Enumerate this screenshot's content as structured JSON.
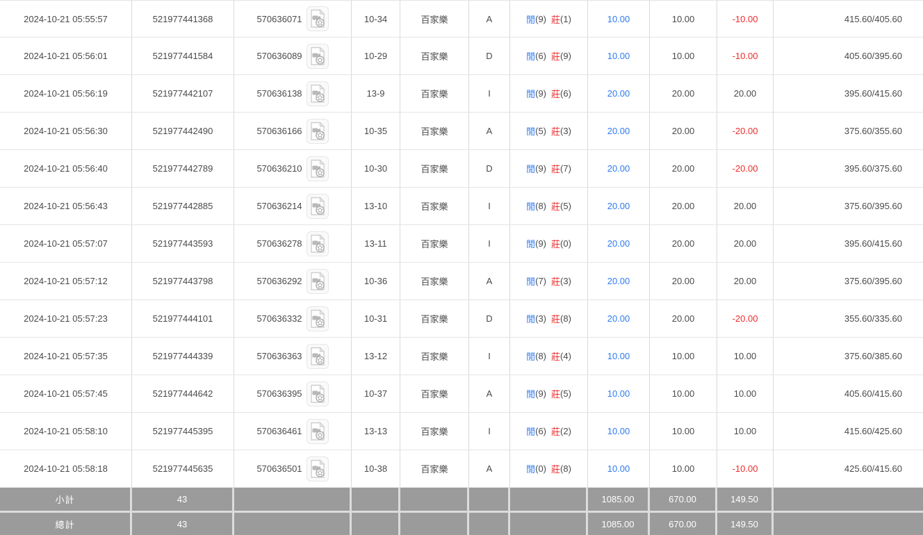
{
  "colors": {
    "accent_blue": "#2e7bf0",
    "accent_red": "#ee2c2c",
    "footer_bg": "#9b9b9b"
  },
  "labels": {
    "player": "閒",
    "banker": "莊",
    "game": "百家樂",
    "subtotal": "小計",
    "total": "總計"
  },
  "icons": {
    "video": "video-document-icon"
  },
  "table": {
    "rows": [
      {
        "time": "2024-10-21 05:55:57",
        "bet_id": "521977441368",
        "round_id": "570636071",
        "table_round": "10-34",
        "game": "百家樂",
        "bet_type": "A",
        "player": "9",
        "banker": "1",
        "bet": "10.00",
        "valid": "10.00",
        "payout": "-10.00",
        "balance": "415.60/405.60"
      },
      {
        "time": "2024-10-21 05:56:01",
        "bet_id": "521977441584",
        "round_id": "570636089",
        "table_round": "10-29",
        "game": "百家樂",
        "bet_type": "D",
        "player": "6",
        "banker": "9",
        "bet": "10.00",
        "valid": "10.00",
        "payout": "-10.00",
        "balance": "405.60/395.60"
      },
      {
        "time": "2024-10-21 05:56:19",
        "bet_id": "521977442107",
        "round_id": "570636138",
        "table_round": "13-9",
        "game": "百家樂",
        "bet_type": "I",
        "player": "9",
        "banker": "6",
        "bet": "20.00",
        "valid": "20.00",
        "payout": "20.00",
        "balance": "395.60/415.60"
      },
      {
        "time": "2024-10-21 05:56:30",
        "bet_id": "521977442490",
        "round_id": "570636166",
        "table_round": "10-35",
        "game": "百家樂",
        "bet_type": "A",
        "player": "5",
        "banker": "3",
        "bet": "20.00",
        "valid": "20.00",
        "payout": "-20.00",
        "balance": "375.60/355.60"
      },
      {
        "time": "2024-10-21 05:56:40",
        "bet_id": "521977442789",
        "round_id": "570636210",
        "table_round": "10-30",
        "game": "百家樂",
        "bet_type": "D",
        "player": "9",
        "banker": "7",
        "bet": "20.00",
        "valid": "20.00",
        "payout": "-20.00",
        "balance": "395.60/375.60"
      },
      {
        "time": "2024-10-21 05:56:43",
        "bet_id": "521977442885",
        "round_id": "570636214",
        "table_round": "13-10",
        "game": "百家樂",
        "bet_type": "I",
        "player": "8",
        "banker": "5",
        "bet": "20.00",
        "valid": "20.00",
        "payout": "20.00",
        "balance": "375.60/395.60"
      },
      {
        "time": "2024-10-21 05:57:07",
        "bet_id": "521977443593",
        "round_id": "570636278",
        "table_round": "13-11",
        "game": "百家樂",
        "bet_type": "I",
        "player": "9",
        "banker": "0",
        "bet": "20.00",
        "valid": "20.00",
        "payout": "20.00",
        "balance": "395.60/415.60"
      },
      {
        "time": "2024-10-21 05:57:12",
        "bet_id": "521977443798",
        "round_id": "570636292",
        "table_round": "10-36",
        "game": "百家樂",
        "bet_type": "A",
        "player": "7",
        "banker": "3",
        "bet": "20.00",
        "valid": "20.00",
        "payout": "20.00",
        "balance": "375.60/395.60"
      },
      {
        "time": "2024-10-21 05:57:23",
        "bet_id": "521977444101",
        "round_id": "570636332",
        "table_round": "10-31",
        "game": "百家樂",
        "bet_type": "D",
        "player": "3",
        "banker": "8",
        "bet": "20.00",
        "valid": "20.00",
        "payout": "-20.00",
        "balance": "355.60/335.60"
      },
      {
        "time": "2024-10-21 05:57:35",
        "bet_id": "521977444339",
        "round_id": "570636363",
        "table_round": "13-12",
        "game": "百家樂",
        "bet_type": "I",
        "player": "8",
        "banker": "4",
        "bet": "10.00",
        "valid": "10.00",
        "payout": "10.00",
        "balance": "375.60/385.60"
      },
      {
        "time": "2024-10-21 05:57:45",
        "bet_id": "521977444642",
        "round_id": "570636395",
        "table_round": "10-37",
        "game": "百家樂",
        "bet_type": "A",
        "player": "9",
        "banker": "5",
        "bet": "10.00",
        "valid": "10.00",
        "payout": "10.00",
        "balance": "405.60/415.60"
      },
      {
        "time": "2024-10-21 05:58:10",
        "bet_id": "521977445395",
        "round_id": "570636461",
        "table_round": "13-13",
        "game": "百家樂",
        "bet_type": "I",
        "player": "6",
        "banker": "2",
        "bet": "10.00",
        "valid": "10.00",
        "payout": "10.00",
        "balance": "415.60/425.60"
      },
      {
        "time": "2024-10-21 05:58:18",
        "bet_id": "521977445635",
        "round_id": "570636501",
        "table_round": "10-38",
        "game": "百家樂",
        "bet_type": "A",
        "player": "0",
        "banker": "8",
        "bet": "10.00",
        "valid": "10.00",
        "payout": "-10.00",
        "balance": "425.60/415.60"
      }
    ],
    "footer": {
      "subtotal": {
        "label": "小計",
        "count": "43",
        "bet": "1085.00",
        "valid": "670.00",
        "payout": "149.50"
      },
      "total": {
        "label": "總計",
        "count": "43",
        "bet": "1085.00",
        "valid": "670.00",
        "payout": "149.50"
      }
    }
  }
}
